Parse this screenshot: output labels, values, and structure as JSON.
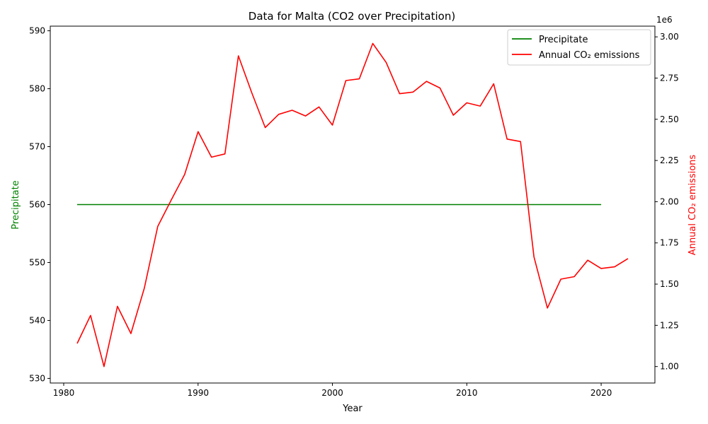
{
  "chart_data": {
    "type": "line",
    "title": "Data for Malta (CO2 over Precipitation)",
    "xlabel": "Year",
    "ylabel_left": "Precipitate",
    "ylabel_right": "Annual CO₂ emissions",
    "right_axis_offset_label": "1e6",
    "xlim": [
      1979,
      2024
    ],
    "ylim_left": [
      529.2,
      590.8
    ],
    "ylim_right": [
      0.9,
      3.065
    ],
    "x_ticks": [
      1980,
      1990,
      2000,
      2010,
      2020
    ],
    "y_ticks_left": [
      530,
      540,
      550,
      560,
      570,
      580,
      590
    ],
    "y_ticks_right": [
      1.0,
      1.25,
      1.5,
      1.75,
      2.0,
      2.25,
      2.5,
      2.75,
      3.0
    ],
    "legend_position": "upper right",
    "series": [
      {
        "name": "Precipitate",
        "axis": "left",
        "color": "#008000",
        "x": [
          1981,
          1982,
          1983,
          1984,
          1985,
          1986,
          1987,
          1988,
          1989,
          1990,
          1991,
          1992,
          1993,
          1994,
          1995,
          1996,
          1997,
          1998,
          1999,
          2000,
          2001,
          2002,
          2003,
          2004,
          2005,
          2006,
          2007,
          2008,
          2009,
          2010,
          2011,
          2012,
          2013,
          2014,
          2015,
          2016,
          2017,
          2018,
          2019,
          2020
        ],
        "values": [
          560,
          560,
          560,
          560,
          560,
          560,
          560,
          560,
          560,
          560,
          560,
          560,
          560,
          560,
          560,
          560,
          560,
          560,
          560,
          560,
          560,
          560,
          560,
          560,
          560,
          560,
          560,
          560,
          560,
          560,
          560,
          560,
          560,
          560,
          560,
          560,
          560,
          560,
          560,
          560
        ]
      },
      {
        "name": "Annual CO₂ emissions",
        "axis": "right",
        "color": "#ff0000",
        "x": [
          1981,
          1982,
          1983,
          1984,
          1985,
          1986,
          1987,
          1988,
          1989,
          1990,
          1991,
          1992,
          1993,
          1994,
          1995,
          1996,
          1997,
          1998,
          1999,
          2000,
          2001,
          2002,
          2003,
          2004,
          2005,
          2006,
          2007,
          2008,
          2009,
          2010,
          2011,
          2012,
          2013,
          2014,
          2015,
          2016,
          2017,
          2018,
          2019,
          2020,
          2021,
          2022
        ],
        "values": [
          1.14,
          1.31,
          1.0,
          1.365,
          1.2,
          1.475,
          1.85,
          2.01,
          2.165,
          2.425,
          2.27,
          2.29,
          2.885,
          2.66,
          2.45,
          2.53,
          2.555,
          2.52,
          2.575,
          2.465,
          2.735,
          2.745,
          2.96,
          2.845,
          2.655,
          2.665,
          2.73,
          2.69,
          2.525,
          2.6,
          2.58,
          2.715,
          2.38,
          2.365,
          1.665,
          1.355,
          1.53,
          1.545,
          1.645,
          1.595,
          1.605,
          1.655
        ]
      }
    ]
  },
  "legend": {
    "items": [
      "Precipitate",
      "Annual CO₂ emissions"
    ]
  }
}
